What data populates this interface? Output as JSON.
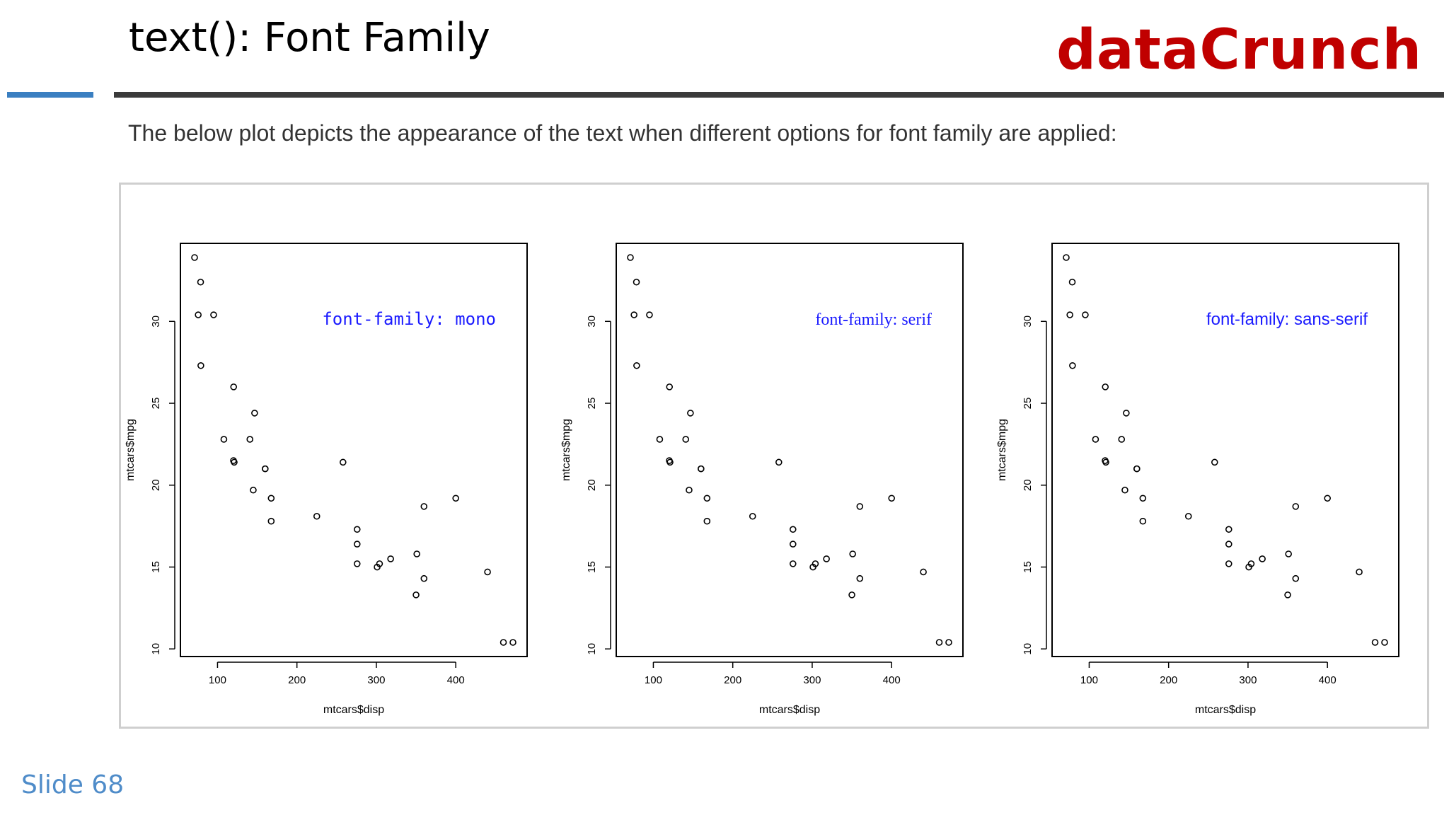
{
  "slide": {
    "title": "text(): Font Family",
    "brand": "dataCrunch",
    "subtitle": "The below plot depicts the appearance of the text when different options for font family are applied:",
    "slide_number": "Slide 68"
  },
  "colors": {
    "brand": "#c00000",
    "accent_rule": "#3a7fc1",
    "dark_rule": "#3b3b3b",
    "annotation": "#1a1aff"
  },
  "chart_data": [
    {
      "type": "scatter",
      "xlabel": "mtcars$disp",
      "ylabel": "mtcars$mpg",
      "xlim": [
        71.1,
        472
      ],
      "ylim": [
        10.4,
        33.9
      ],
      "xticks": [
        100,
        200,
        300,
        400
      ],
      "yticks": [
        10,
        15,
        20,
        25,
        30
      ],
      "x": [
        160,
        160,
        108,
        258,
        360,
        225,
        360,
        146.7,
        140.8,
        167.6,
        167.6,
        275.8,
        275.8,
        275.8,
        472,
        460,
        440,
        78.7,
        75.7,
        71.1,
        120.1,
        318,
        304,
        350,
        400,
        79,
        120.3,
        95.1,
        351,
        145,
        301,
        121
      ],
      "y": [
        21,
        21,
        22.8,
        21.4,
        18.7,
        18.1,
        14.3,
        24.4,
        22.8,
        19.2,
        17.8,
        16.4,
        17.3,
        15.2,
        10.4,
        10.4,
        14.7,
        32.4,
        30.4,
        33.9,
        21.5,
        15.5,
        15.2,
        13.3,
        19.2,
        27.3,
        26,
        30.4,
        15.8,
        19.7,
        15,
        21.4
      ],
      "annotation": "font-family: mono",
      "annotation_font": "mono",
      "grid": false
    },
    {
      "type": "scatter",
      "xlabel": "mtcars$disp",
      "ylabel": "mtcars$mpg",
      "xlim": [
        71.1,
        472
      ],
      "ylim": [
        10.4,
        33.9
      ],
      "xticks": [
        100,
        200,
        300,
        400
      ],
      "yticks": [
        10,
        15,
        20,
        25,
        30
      ],
      "x": [
        160,
        160,
        108,
        258,
        360,
        225,
        360,
        146.7,
        140.8,
        167.6,
        167.6,
        275.8,
        275.8,
        275.8,
        472,
        460,
        440,
        78.7,
        75.7,
        71.1,
        120.1,
        318,
        304,
        350,
        400,
        79,
        120.3,
        95.1,
        351,
        145,
        301,
        121
      ],
      "y": [
        21,
        21,
        22.8,
        21.4,
        18.7,
        18.1,
        14.3,
        24.4,
        22.8,
        19.2,
        17.8,
        16.4,
        17.3,
        15.2,
        10.4,
        10.4,
        14.7,
        32.4,
        30.4,
        33.9,
        21.5,
        15.5,
        15.2,
        13.3,
        19.2,
        27.3,
        26,
        30.4,
        15.8,
        19.7,
        15,
        21.4
      ],
      "annotation": "font-family: serif",
      "annotation_font": "serif",
      "grid": false
    },
    {
      "type": "scatter",
      "xlabel": "mtcars$disp",
      "ylabel": "mtcars$mpg",
      "xlim": [
        71.1,
        472
      ],
      "ylim": [
        10.4,
        33.9
      ],
      "xticks": [
        100,
        200,
        300,
        400
      ],
      "yticks": [
        10,
        15,
        20,
        25,
        30
      ],
      "x": [
        160,
        160,
        108,
        258,
        360,
        225,
        360,
        146.7,
        140.8,
        167.6,
        167.6,
        275.8,
        275.8,
        275.8,
        472,
        460,
        440,
        78.7,
        75.7,
        71.1,
        120.1,
        318,
        304,
        350,
        400,
        79,
        120.3,
        95.1,
        351,
        145,
        301,
        121
      ],
      "y": [
        21,
        21,
        22.8,
        21.4,
        18.7,
        18.1,
        14.3,
        24.4,
        22.8,
        19.2,
        17.8,
        16.4,
        17.3,
        15.2,
        10.4,
        10.4,
        14.7,
        32.4,
        30.4,
        33.9,
        21.5,
        15.5,
        15.2,
        13.3,
        19.2,
        27.3,
        26,
        30.4,
        15.8,
        19.7,
        15,
        21.4
      ],
      "annotation": "font-family: sans-serif",
      "annotation_font": "sans-serif",
      "grid": false
    }
  ]
}
